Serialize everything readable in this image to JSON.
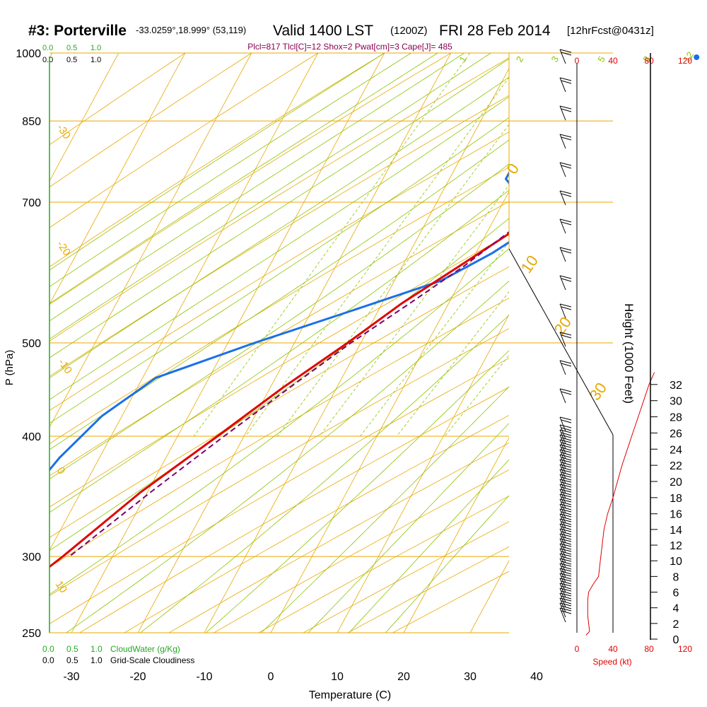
{
  "header": {
    "station": "#3: Porterville",
    "coords": "-33.0259°,18.999° (53,119)",
    "valid": "Valid 1400 LST",
    "utc": "(1200Z)",
    "date": "FRI 28 Feb 2014",
    "fcst": "[12hrFcst@0431z]",
    "indices": "Plcl=817 Tlcl[C]=12 Shox=2 Pwat[cm]=3 Cape[J]= 485"
  },
  "colors": {
    "isobar": "#e8a800",
    "dry_adiabat": "#e8a800",
    "moist_adiabat": "#8cc400",
    "mixing_ratio": "#8cc400",
    "temperature": "#e00000",
    "dewpoint": "#1a6fe8",
    "parcel": "#7a0070",
    "cloudwater": "#22aa22",
    "speed": "#e00000"
  },
  "chart_data": {
    "type": "skew-t",
    "title": "#3: Porterville  Valid 1400 LST FRI 28 Feb 2014",
    "xlabel": "Temperature (C)",
    "ylabel": "P (hPa)",
    "y2label": "Height (1000 Feet)",
    "xlim": [
      -35,
      50
    ],
    "ylim_hpa": [
      1000,
      250
    ],
    "pressure_ticks": [
      250,
      300,
      400,
      500,
      700,
      850,
      1000
    ],
    "temp_ticks": [
      -30,
      -20,
      -10,
      0,
      10,
      20,
      30,
      40
    ],
    "height_ticks_kft": [
      0,
      2,
      4,
      6,
      8,
      10,
      12,
      14,
      16,
      18,
      20,
      22,
      24,
      26,
      28,
      30,
      32
    ],
    "dry_adiabat_labels": [
      "-30",
      "-20",
      "-10",
      "0",
      "10",
      "0",
      "10",
      "20",
      "30"
    ],
    "mixing_ratio_labels": [
      "1",
      "2",
      "3",
      "5",
      "8",
      "12",
      "20"
    ],
    "cloud_scale_top": [
      "0.0",
      "0.5",
      "1.0"
    ],
    "cloud_scale_bottom": [
      "0.0",
      "0.5",
      "1.0"
    ],
    "cloudwater_label": "CloudWater (g/Kg)",
    "cloudiness_label": "Grid-Scale Cloudiness",
    "speed_ticks_kt": [
      "0",
      "40",
      "80",
      "120"
    ],
    "speed_label": "Speed (kt)",
    "temperature_profile": [
      {
        "p": 990,
        "t": 28.5
      },
      {
        "p": 970,
        "t": 25.5
      },
      {
        "p": 940,
        "t": 22.0
      },
      {
        "p": 900,
        "t": 18.5
      },
      {
        "p": 870,
        "t": 15.5
      },
      {
        "p": 840,
        "t": 13.0
      },
      {
        "p": 820,
        "t": 12.5
      },
      {
        "p": 805,
        "t": 14.5
      },
      {
        "p": 790,
        "t": 14.5
      },
      {
        "p": 760,
        "t": 13.0
      },
      {
        "p": 720,
        "t": 10.0
      },
      {
        "p": 680,
        "t": 6.5
      },
      {
        "p": 650,
        "t": 3.5
      },
      {
        "p": 600,
        "t": -1.5
      },
      {
        "p": 550,
        "t": -7.0
      },
      {
        "p": 500,
        "t": -12.0
      },
      {
        "p": 450,
        "t": -18.0
      },
      {
        "p": 400,
        "t": -24.0
      },
      {
        "p": 350,
        "t": -31.0
      },
      {
        "p": 300,
        "t": -37.5
      },
      {
        "p": 270,
        "t": -42.5
      },
      {
        "p": 260,
        "t": -44.5
      }
    ],
    "dewpoint_profile": [
      {
        "p": 990,
        "t": 15.8
      },
      {
        "p": 960,
        "t": 15.8
      },
      {
        "p": 900,
        "t": 15.0
      },
      {
        "p": 860,
        "t": 14.5
      },
      {
        "p": 840,
        "t": 13.0
      },
      {
        "p": 820,
        "t": 7.0
      },
      {
        "p": 790,
        "t": 1.5
      },
      {
        "p": 760,
        "t": -1.5
      },
      {
        "p": 740,
        "t": -1.5
      },
      {
        "p": 710,
        "t": 2.0
      },
      {
        "p": 670,
        "t": 5.5
      },
      {
        "p": 650,
        "t": 5.5
      },
      {
        "p": 620,
        "t": 2.5
      },
      {
        "p": 580,
        "t": -3.0
      },
      {
        "p": 540,
        "t": -14.0
      },
      {
        "p": 500,
        "t": -26.0
      },
      {
        "p": 460,
        "t": -38.0
      },
      {
        "p": 420,
        "t": -43.0
      },
      {
        "p": 380,
        "t": -46.0
      },
      {
        "p": 350,
        "t": -47.5
      },
      {
        "p": 320,
        "t": -50.5
      },
      {
        "p": 290,
        "t": -54.5
      },
      {
        "p": 265,
        "t": -58.5
      }
    ],
    "parcel_profile": [
      {
        "p": 655,
        "t": 3.5
      },
      {
        "p": 600,
        "t": -0.8
      },
      {
        "p": 550,
        "t": -5.8
      },
      {
        "p": 500,
        "t": -11.5
      },
      {
        "p": 450,
        "t": -17.0
      },
      {
        "p": 400,
        "t": -23.0
      },
      {
        "p": 350,
        "t": -29.5
      },
      {
        "p": 300,
        "t": -36.5
      }
    ],
    "surface": {
      "t": 30.0,
      "td": 17.3
    },
    "speed_profile_kt": [
      {
        "h": 0.5,
        "v": 10
      },
      {
        "h": 1,
        "v": 14
      },
      {
        "h": 3,
        "v": 12
      },
      {
        "h": 5,
        "v": 12
      },
      {
        "h": 6,
        "v": 13
      },
      {
        "h": 7,
        "v": 18
      },
      {
        "h": 8,
        "v": 24
      },
      {
        "h": 10,
        "v": 26
      },
      {
        "h": 12,
        "v": 28
      },
      {
        "h": 14,
        "v": 30
      },
      {
        "h": 16,
        "v": 34
      },
      {
        "h": 18,
        "v": 40
      },
      {
        "h": 20,
        "v": 45
      },
      {
        "h": 22,
        "v": 50
      },
      {
        "h": 24,
        "v": 56
      },
      {
        "h": 26,
        "v": 62
      },
      {
        "h": 28,
        "v": 68
      },
      {
        "h": 30,
        "v": 74
      },
      {
        "h": 32,
        "v": 80
      },
      {
        "h": 33.5,
        "v": 86
      }
    ]
  }
}
